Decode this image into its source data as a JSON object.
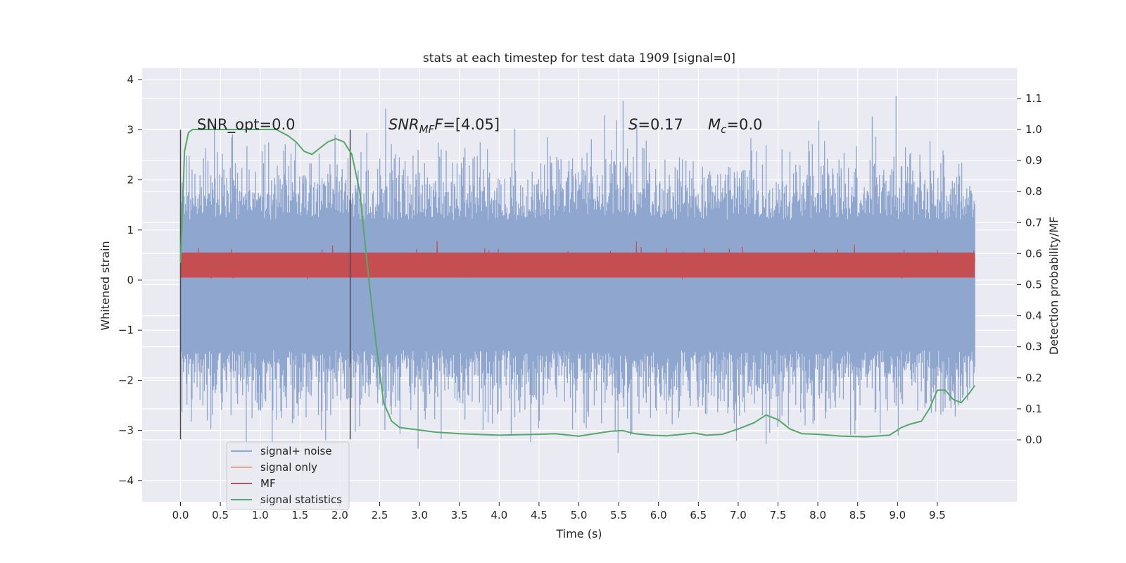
{
  "chart_data": {
    "type": "line",
    "title": "stats at each timestep for test data 1909 [signal=0]",
    "xlabel": "Time (s)",
    "ylabel": "Whitened strain",
    "y2label": "Detection probability/MF",
    "xlim": [
      -0.48,
      10.5
    ],
    "ylim": [
      -4.4,
      4.2
    ],
    "y2lim": [
      -0.2,
      1.2
    ],
    "xticks": [
      "0.0",
      "0.5",
      "1.0",
      "1.5",
      "2.0",
      "2.5",
      "3.0",
      "3.5",
      "4.0",
      "4.5",
      "5.0",
      "5.5",
      "6.0",
      "6.5",
      "7.0",
      "7.5",
      "8.0",
      "8.5",
      "9.0",
      "9.5"
    ],
    "yticks": [
      "4",
      "3",
      "2",
      "1",
      "0",
      "−1",
      "−2",
      "−3",
      "−4"
    ],
    "y2ticks": [
      "1.1",
      "1.0",
      "0.9",
      "0.8",
      "0.7",
      "0.6",
      "0.5",
      "0.4",
      "0.3",
      "0.2",
      "0.1",
      "0.0"
    ],
    "grid": true,
    "legend_position": "lower-left",
    "colors": {
      "background": "#eaeaf2",
      "grid": "#ffffff",
      "noise": "#8fa6cf",
      "signal": "#e8a788",
      "mf": "#c44e52",
      "stats": "#55a868",
      "vline": "#4c4c4c"
    },
    "series": [
      {
        "name": "signal+ noise",
        "axis": "left",
        "description_range": [
          -4.0,
          3.85
        ]
      },
      {
        "name": "signal only",
        "axis": "left",
        "values": []
      },
      {
        "name": "MF",
        "axis": "left"
      },
      {
        "name": "signal statistics",
        "axis": "right",
        "x": [
          0.0,
          0.05,
          0.1,
          0.15,
          0.2,
          0.3,
          0.5,
          0.8,
          1.0,
          1.2,
          1.35,
          1.45,
          1.55,
          1.65,
          1.75,
          1.85,
          1.95,
          2.05,
          2.15,
          2.25,
          2.35,
          2.45,
          2.55,
          2.65,
          2.75,
          2.9,
          3.2,
          3.5,
          4.0,
          4.5,
          4.7,
          5.0,
          5.2,
          5.4,
          5.55,
          5.7,
          5.9,
          6.1,
          6.3,
          6.45,
          6.6,
          6.8,
          7.0,
          7.2,
          7.35,
          7.5,
          7.65,
          7.8,
          8.0,
          8.3,
          8.6,
          8.9,
          9.05,
          9.15,
          9.3,
          9.4,
          9.5,
          9.6,
          9.7,
          9.8,
          9.9,
          9.97
        ],
        "values": [
          0.57,
          0.93,
          0.99,
          1.0,
          1.0,
          1.0,
          1.0,
          1.0,
          1.0,
          1.0,
          0.98,
          0.96,
          0.93,
          0.92,
          0.94,
          0.96,
          0.97,
          0.96,
          0.92,
          0.8,
          0.55,
          0.32,
          0.12,
          0.06,
          0.04,
          0.035,
          0.025,
          0.02,
          0.015,
          0.018,
          0.02,
          0.012,
          0.02,
          0.028,
          0.03,
          0.02,
          0.015,
          0.013,
          0.018,
          0.022,
          0.015,
          0.018,
          0.035,
          0.055,
          0.08,
          0.065,
          0.035,
          0.02,
          0.018,
          0.012,
          0.01,
          0.015,
          0.04,
          0.05,
          0.06,
          0.1,
          0.16,
          0.16,
          0.13,
          0.12,
          0.15,
          0.175
        ]
      }
    ],
    "vlines": [
      0.0,
      2.13
    ]
  },
  "annotations": {
    "snr_opt": "SNR_opt=0.0",
    "snr_mf_main": "SNR",
    "snr_mf_sub": "MF",
    "snr_mf_value": "=[4.05]",
    "s_italic": "S",
    "s_value": "=0.17",
    "mc_italic": "M",
    "mc_sub": "c",
    "mc_value": "=0.0"
  }
}
